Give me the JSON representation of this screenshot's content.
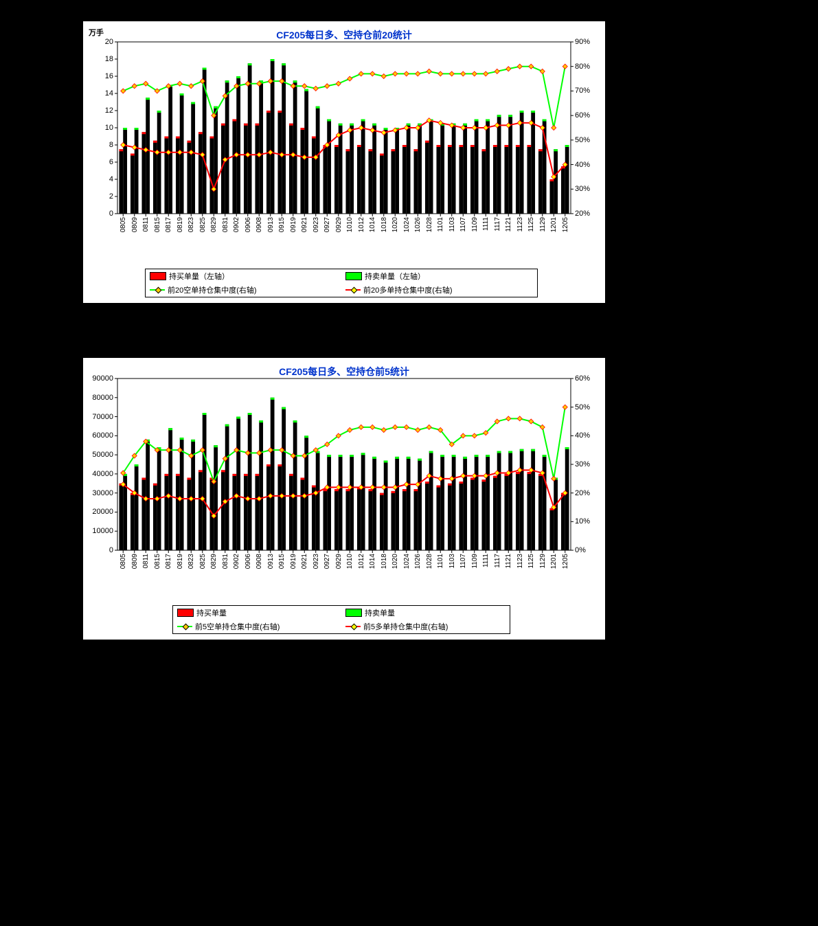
{
  "dates": [
    "0805",
    "0809",
    "0811",
    "0815",
    "0817",
    "0819",
    "0823",
    "0825",
    "0829",
    "0831",
    "0902",
    "0906",
    "0908",
    "0913",
    "0915",
    "0919",
    "0921",
    "0923",
    "0927",
    "0929",
    "1010",
    "1012",
    "1014",
    "1018",
    "1020",
    "1024",
    "1026",
    "1028",
    "1101",
    "1103",
    "1107",
    "1109",
    "1111",
    "1117",
    "1121",
    "1123",
    "1125",
    "1129",
    "1201",
    "1205"
  ],
  "chart1": {
    "title": "CF205每日多、空持仓前20统计",
    "title_color": "#0033cc",
    "title_fontsize": 14,
    "unit_left": "万手",
    "y_left": {
      "min": 0,
      "max": 20,
      "step": 2
    },
    "y_right": {
      "min": 20,
      "max": 90,
      "step": 10,
      "suffix": "%"
    },
    "bar_buy_color": "#ff0000",
    "bar_sell_color": "#00ff00",
    "bar_body_color": "#000000",
    "line_short": {
      "color": "#00ff00",
      "marker_color": "#ffcc00",
      "marker_border": "#ff0000"
    },
    "line_long": {
      "color": "#ff0000",
      "marker_color": "#ffff00",
      "marker_border": "#ff0000"
    },
    "border_color": "#000000",
    "legend": {
      "items": [
        {
          "swatch": "box",
          "color": "#ff0000",
          "label": "持买单量（左轴）"
        },
        {
          "swatch": "box",
          "color": "#00ff00",
          "label": "持卖单量（左轴）"
        },
        {
          "swatch": "line",
          "base": "#00ff00",
          "marker": "#ffcc00",
          "label": "前20空单持仓集中度(右轴)"
        },
        {
          "swatch": "line",
          "base": "#ff0000",
          "marker": "#ffff00",
          "label": "前20多单持仓集中度(右轴)"
        }
      ]
    },
    "bars_buy": [
      7.5,
      7.0,
      9.5,
      8.5,
      9.0,
      9.0,
      8.5,
      9.5,
      9.0,
      10.5,
      11.0,
      10.5,
      10.5,
      12.0,
      12.0,
      10.5,
      10.0,
      9.0,
      8.0,
      8.0,
      7.5,
      8.0,
      7.5,
      7.0,
      7.5,
      8.0,
      7.5,
      8.5,
      8.0,
      8.0,
      8.0,
      8.0,
      7.5,
      8.0,
      8.0,
      8.0,
      8.0,
      7.5,
      4.0,
      5.5
    ],
    "bars_sell": [
      10.0,
      10.0,
      13.5,
      12.0,
      15.0,
      14.0,
      13.0,
      17.0,
      12.5,
      15.5,
      16.0,
      17.5,
      15.5,
      18.0,
      17.5,
      15.5,
      14.5,
      12.5,
      11.0,
      10.5,
      10.5,
      11.0,
      10.5,
      10.0,
      10.0,
      10.5,
      10.5,
      11.0,
      10.5,
      10.5,
      10.5,
      11.0,
      11.0,
      11.5,
      11.5,
      12.0,
      12.0,
      11.0,
      7.5,
      8.0
    ],
    "line_short_vals": [
      70,
      72,
      73,
      70,
      72,
      73,
      72,
      74,
      60,
      68,
      72,
      73,
      73,
      74,
      74,
      72,
      72,
      71,
      72,
      73,
      75,
      77,
      77,
      76,
      77,
      77,
      77,
      78,
      77,
      77,
      77,
      77,
      77,
      78,
      79,
      80,
      80,
      78,
      55,
      80
    ],
    "line_long_vals": [
      48,
      47,
      46,
      45,
      45,
      45,
      45,
      44,
      30,
      42,
      44,
      44,
      44,
      45,
      44,
      44,
      43,
      43,
      48,
      52,
      54,
      55,
      54,
      53,
      54,
      55,
      55,
      58,
      57,
      56,
      55,
      55,
      55,
      56,
      56,
      57,
      57,
      55,
      35,
      40
    ]
  },
  "chart2": {
    "title": "CF205每日多、空持仓前5统计",
    "title_color": "#0033cc",
    "title_fontsize": 14,
    "y_left": {
      "min": 0,
      "max": 90000,
      "step": 10000
    },
    "y_right": {
      "min": 0,
      "max": 60,
      "step": 10,
      "suffix": "%"
    },
    "bar_buy_color": "#ff0000",
    "bar_sell_color": "#00ff00",
    "bar_body_color": "#000000",
    "line_short": {
      "color": "#00ff00",
      "marker_color": "#ffcc00",
      "marker_border": "#ff0000"
    },
    "line_long": {
      "color": "#ff0000",
      "marker_color": "#ffff00",
      "marker_border": "#ff0000"
    },
    "border_color": "#000000",
    "legend": {
      "items": [
        {
          "swatch": "box",
          "color": "#ff0000",
          "label": "持买单量"
        },
        {
          "swatch": "box",
          "color": "#00ff00",
          "label": "持卖单量"
        },
        {
          "swatch": "line",
          "base": "#00ff00",
          "marker": "#ffcc00",
          "label": "前5空单持仓集中度(右轴)"
        },
        {
          "swatch": "line",
          "base": "#ff0000",
          "marker": "#ffff00",
          "label": "前5多单持仓集中度(右轴)"
        }
      ]
    },
    "bars_buy": [
      35000,
      30000,
      38000,
      35000,
      40000,
      40000,
      38000,
      42000,
      38000,
      42000,
      40000,
      40000,
      40000,
      45000,
      45000,
      40000,
      38000,
      34000,
      32000,
      32000,
      32000,
      33000,
      32000,
      30000,
      31000,
      32000,
      32000,
      36000,
      34000,
      35000,
      36000,
      38000,
      37000,
      39000,
      40000,
      41000,
      41000,
      40000,
      22000,
      30000
    ],
    "bars_sell": [
      40000,
      45000,
      58000,
      54000,
      64000,
      59000,
      58000,
      72000,
      55000,
      66000,
      70000,
      72000,
      68000,
      80000,
      75000,
      68000,
      60000,
      52000,
      50000,
      50000,
      50000,
      51000,
      49000,
      47000,
      49000,
      49000,
      48000,
      52000,
      50000,
      50000,
      49000,
      50000,
      50000,
      52000,
      52000,
      53000,
      53000,
      50000,
      38000,
      54000
    ],
    "line_short_vals": [
      27,
      33,
      38,
      35,
      35,
      35,
      33,
      35,
      24,
      32,
      35,
      34,
      34,
      35,
      35,
      33,
      33,
      35,
      37,
      40,
      42,
      43,
      43,
      42,
      43,
      43,
      42,
      43,
      42,
      37,
      40,
      40,
      41,
      45,
      46,
      46,
      45,
      43,
      25,
      50
    ],
    "line_long_vals": [
      23,
      20,
      18,
      18,
      19,
      18,
      18,
      18,
      12,
      17,
      19,
      18,
      18,
      19,
      19,
      19,
      19,
      20,
      22,
      22,
      22,
      22,
      22,
      22,
      22,
      23,
      23,
      26,
      25,
      25,
      26,
      26,
      26,
      27,
      27,
      28,
      28,
      27,
      15,
      20
    ]
  }
}
